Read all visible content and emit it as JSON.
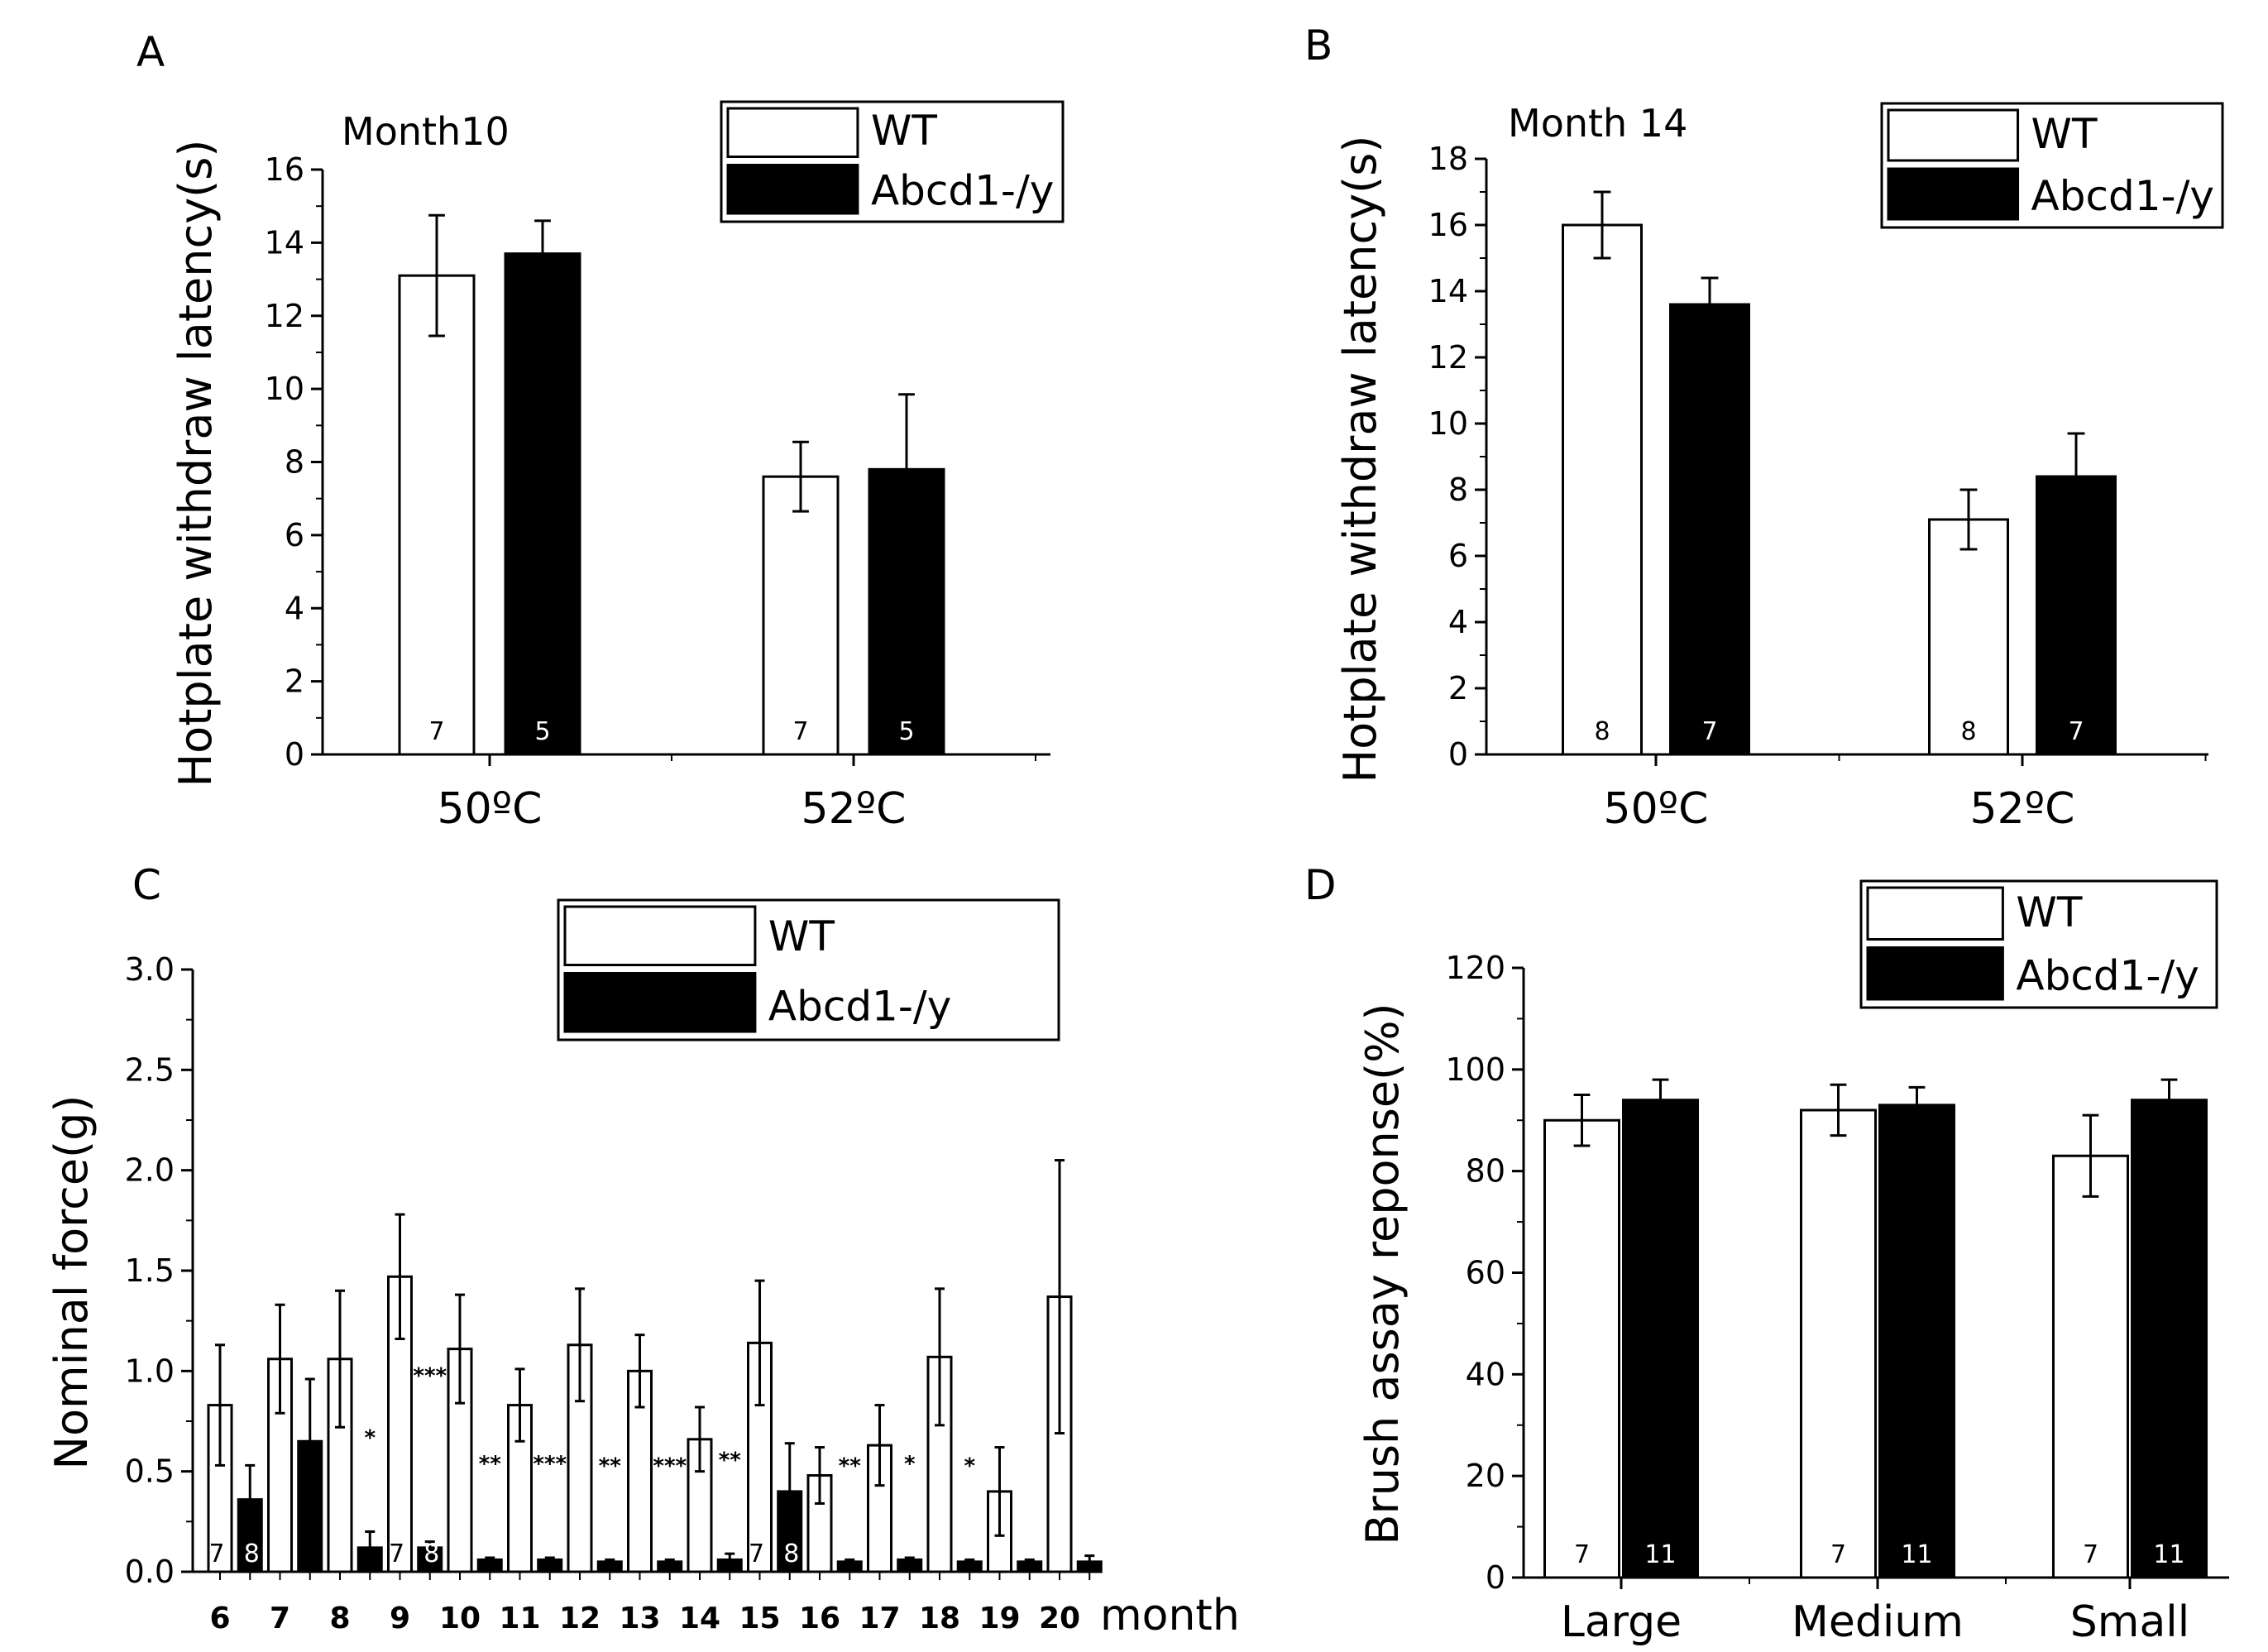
{
  "chart_data": [
    {
      "panel": "A",
      "type": "bar",
      "title": "Month10",
      "ylabel": "Hotplate withdraw latency(s)",
      "ylim": [
        0,
        16
      ],
      "yticks": [
        0,
        2,
        4,
        6,
        8,
        10,
        12,
        14,
        16
      ],
      "categories": [
        "50ºC",
        "52ºC"
      ],
      "legend": [
        "WT",
        "Abcd1-/y"
      ],
      "series": [
        {
          "name": "WT",
          "values": [
            13.1,
            7.6
          ],
          "errors": [
            1.65,
            0.95
          ],
          "n": [
            "7",
            "7"
          ]
        },
        {
          "name": "Abcd1-/y",
          "values": [
            13.7,
            7.8
          ],
          "errors": [
            0.9,
            2.05
          ],
          "n": [
            "5",
            "5"
          ]
        }
      ]
    },
    {
      "panel": "B",
      "type": "bar",
      "title": "Month 14",
      "ylabel": "Hotplate withdraw latency(s)",
      "ylim": [
        0,
        18
      ],
      "yticks": [
        0,
        2,
        4,
        6,
        8,
        10,
        12,
        14,
        16,
        18
      ],
      "categories": [
        "50ºC",
        "52ºC"
      ],
      "legend": [
        "WT",
        "Abcd1-/y"
      ],
      "series": [
        {
          "name": "WT",
          "values": [
            16.0,
            7.1
          ],
          "errors": [
            1.0,
            0.9
          ],
          "n": [
            "8",
            "8"
          ]
        },
        {
          "name": "Abcd1-/y",
          "values": [
            13.6,
            8.4
          ],
          "errors": [
            0.8,
            1.3
          ],
          "n": [
            "7",
            "7"
          ]
        }
      ]
    },
    {
      "panel": "C",
      "type": "bar",
      "title": "",
      "ylabel": "Nominal force(g)",
      "xlabel": "month",
      "ylim": [
        0,
        3.0
      ],
      "yticks": [
        "0.0",
        "0.5",
        "1.0",
        "1.5",
        "2.0",
        "2.5",
        "3.0"
      ],
      "categories": [
        "6",
        "7",
        "8",
        "9",
        "10",
        "11",
        "12",
        "13",
        "14",
        "15",
        "16",
        "17",
        "18",
        "19",
        "20"
      ],
      "legend": [
        "WT",
        "Abcd1-/y"
      ],
      "series": [
        {
          "name": "WT",
          "values": [
            0.83,
            1.06,
            1.06,
            1.47,
            1.11,
            0.83,
            1.13,
            1.0,
            0.66,
            1.14,
            0.48,
            0.63,
            1.07,
            0.4,
            1.37
          ],
          "errors": [
            0.3,
            0.27,
            0.34,
            0.31,
            0.27,
            0.18,
            0.28,
            0.18,
            0.16,
            0.31,
            0.14,
            0.2,
            0.34,
            0.22,
            0.68
          ]
        },
        {
          "name": "Abcd1-/y",
          "values": [
            0.36,
            0.65,
            0.12,
            0.12,
            0.06,
            0.06,
            0.05,
            0.05,
            0.06,
            0.4,
            0.05,
            0.06,
            0.05,
            0.05,
            0.05
          ],
          "errors": [
            0.17,
            0.31,
            0.08,
            0.03,
            0.01,
            0.01,
            0.01,
            0.01,
            0.03,
            0.24,
            0.01,
            0.01,
            0.01,
            0.01,
            0.03
          ]
        }
      ],
      "significance": [
        {
          "index": 2,
          "label": "*"
        },
        {
          "index": 3,
          "label": "***"
        },
        {
          "index": 4,
          "label": "**"
        },
        {
          "index": 5,
          "label": "***"
        },
        {
          "index": 6,
          "label": "**"
        },
        {
          "index": 7,
          "label": "***"
        },
        {
          "index": 8,
          "label": "**"
        },
        {
          "index": 10,
          "label": "**"
        },
        {
          "index": 11,
          "label": "*"
        },
        {
          "index": 12,
          "label": "*"
        }
      ],
      "n_labels": [
        {
          "index": 0,
          "wt": "7",
          "ko": "8"
        },
        {
          "index": 3,
          "wt": "7",
          "ko": "8"
        },
        {
          "index": 9,
          "wt": "7",
          "ko": "8"
        }
      ]
    },
    {
      "panel": "D",
      "type": "bar",
      "title": "",
      "ylabel": "Brush assay reponse(%)",
      "ylim": [
        0,
        120
      ],
      "yticks": [
        0,
        20,
        40,
        60,
        80,
        100,
        120
      ],
      "categories": [
        "Large",
        "Medium",
        "Small"
      ],
      "legend": [
        "WT",
        "Abcd1-/y"
      ],
      "series": [
        {
          "name": "WT",
          "values": [
            90,
            92,
            83
          ],
          "errors": [
            5,
            5,
            8
          ],
          "n": [
            "7",
            "7",
            "7"
          ]
        },
        {
          "name": "Abcd1-/y",
          "values": [
            94,
            93,
            94
          ],
          "errors": [
            4,
            3.5,
            4
          ],
          "n": [
            "11",
            "11",
            "11"
          ]
        }
      ]
    }
  ]
}
